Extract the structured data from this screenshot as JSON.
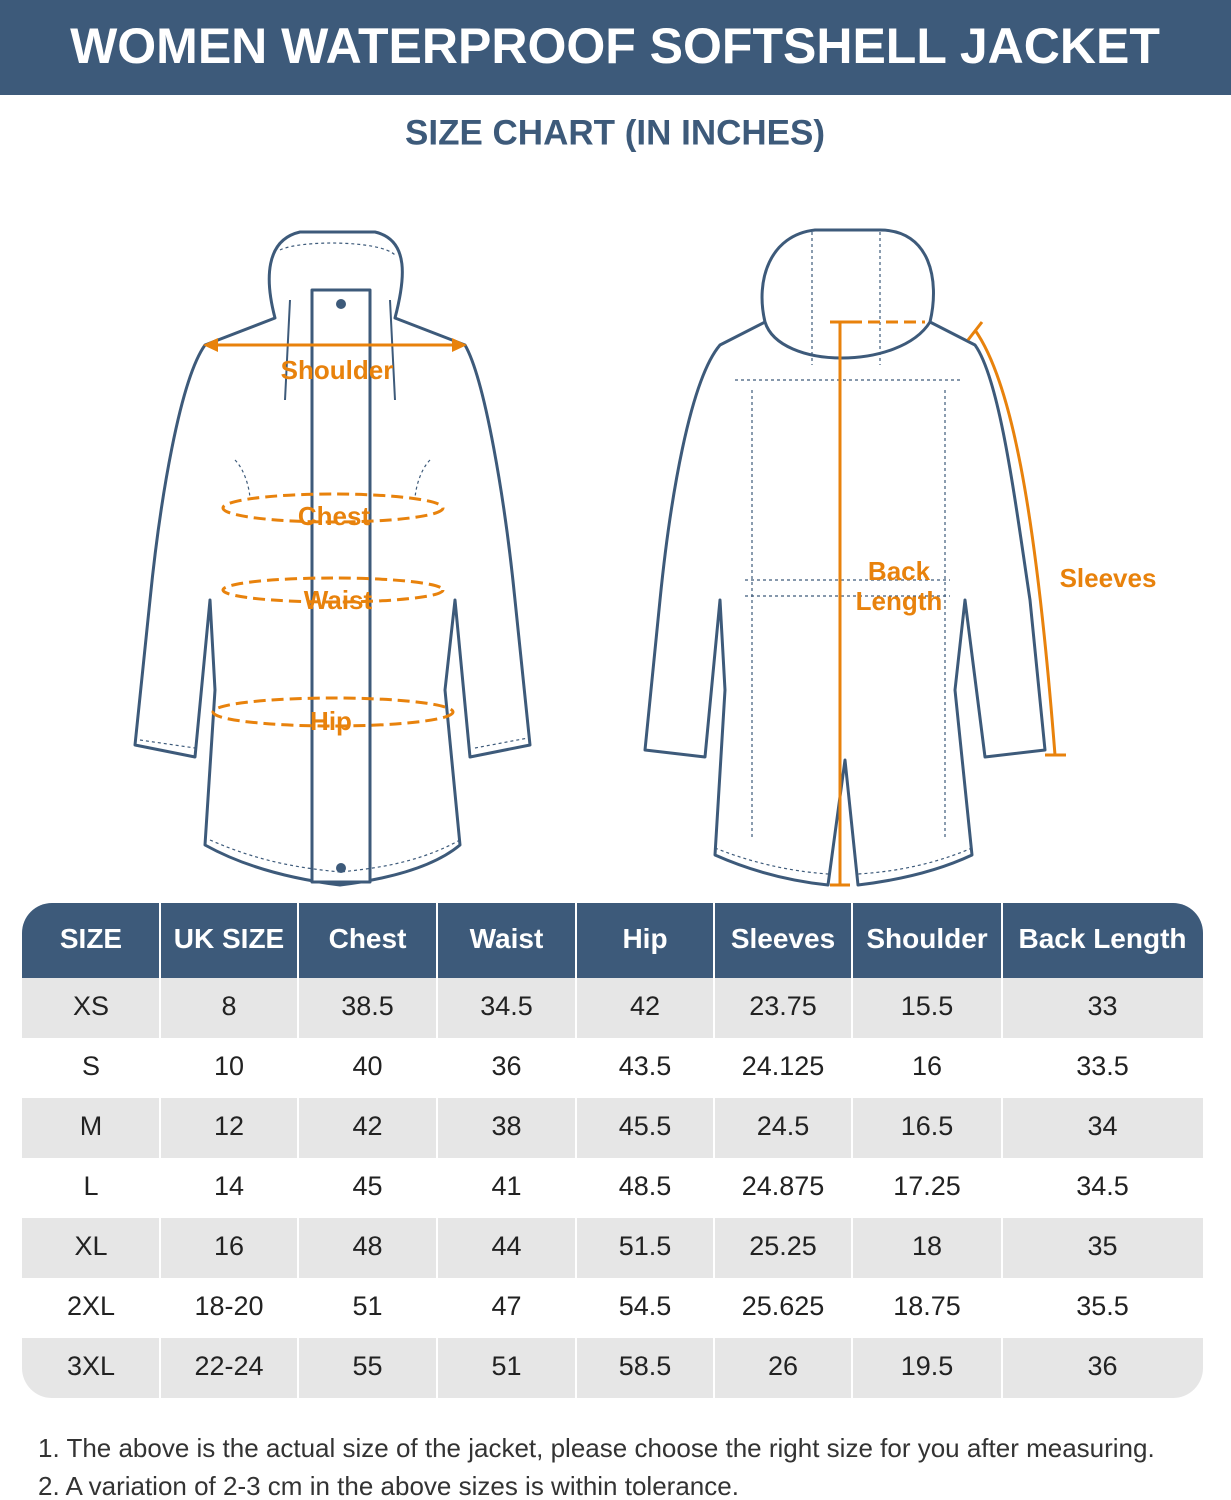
{
  "header": {
    "title": "WOMEN WATERPROOF SOFTSHELL JACKET",
    "subtitle": "SIZE CHART (IN INCHES)"
  },
  "diagram": {
    "front": {
      "shoulder": "Shoulder",
      "chest": "Chest",
      "waist": "Waist",
      "hip": "Hip"
    },
    "back": {
      "back_length": [
        "Back",
        "Length"
      ],
      "sleeves": "Sleeves"
    }
  },
  "table": {
    "columns": [
      "SIZE",
      "UK SIZE",
      "Chest",
      "Waist",
      "Hip",
      "Sleeves",
      "Shoulder",
      "Back Length"
    ],
    "rows": [
      [
        "XS",
        "8",
        "38.5",
        "34.5",
        "42",
        "23.75",
        "15.5",
        "33"
      ],
      [
        "S",
        "10",
        "40",
        "36",
        "43.5",
        "24.125",
        "16",
        "33.5"
      ],
      [
        "M",
        "12",
        "42",
        "38",
        "45.5",
        "24.5",
        "16.5",
        "34"
      ],
      [
        "L",
        "14",
        "45",
        "41",
        "48.5",
        "24.875",
        "17.25",
        "34.5"
      ],
      [
        "XL",
        "16",
        "48",
        "44",
        "51.5",
        "25.25",
        "18",
        "35"
      ],
      [
        "2XL",
        "18-20",
        "51",
        "47",
        "54.5",
        "25.625",
        "18.75",
        "35.5"
      ],
      [
        "3XL",
        "22-24",
        "55",
        "51",
        "58.5",
        "26",
        "19.5",
        "36"
      ]
    ]
  },
  "notes": [
    "1. The above is the actual size of the jacket, please choose the right size for you after measuring.",
    "2. A variation of 2-3 cm in the above sizes is within tolerance."
  ]
}
